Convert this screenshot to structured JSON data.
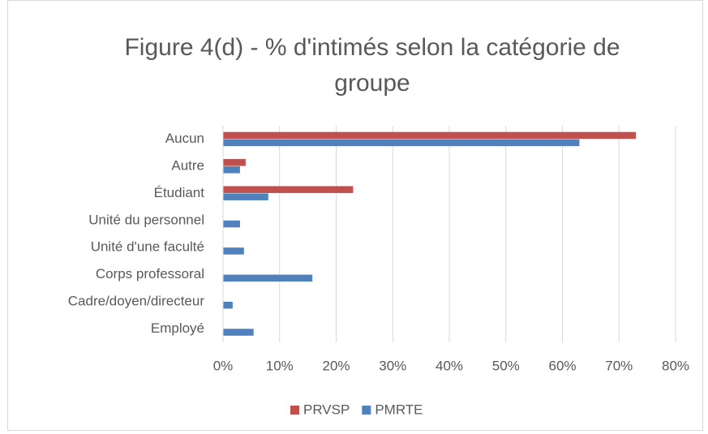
{
  "chart_data": {
    "type": "hbar",
    "title": "Figure 4(d) - % d'intimés selon la catégorie de groupe",
    "categories": [
      "Aucun",
      "Autre",
      "Étudiant",
      "Unité du personnel",
      "Unité d'une faculté",
      "Corps professoral",
      "Cadre/doyen/directeur",
      "Employé"
    ],
    "series": [
      {
        "name": "PRVSP",
        "color": "#c0504d",
        "values": [
          73,
          4,
          23,
          0,
          0,
          0,
          0,
          0
        ]
      },
      {
        "name": "PMRTE",
        "color": "#4f81bd",
        "values": [
          63,
          3,
          8,
          3,
          3.7,
          15.8,
          1.7,
          5.4
        ]
      }
    ],
    "xlim": [
      0,
      80
    ],
    "xticks": [
      {
        "value": 0,
        "label": "0%"
      },
      {
        "value": 10,
        "label": "10%"
      },
      {
        "value": 20,
        "label": "20%"
      },
      {
        "value": 30,
        "label": "30%"
      },
      {
        "value": 40,
        "label": "40%"
      },
      {
        "value": 50,
        "label": "50%"
      },
      {
        "value": 60,
        "label": "60%"
      },
      {
        "value": 70,
        "label": "70%"
      },
      {
        "value": 80,
        "label": "80%"
      }
    ],
    "grid": true,
    "legend": "bottom"
  }
}
